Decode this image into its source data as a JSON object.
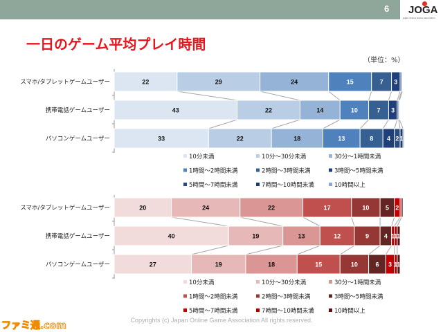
{
  "header": {
    "page_number": "6",
    "logo_text": "JOGA",
    "logo_subtext": "Japan Online Game Association"
  },
  "title": "一日のゲーム平均プレイ時間",
  "unit_label": "（単位：%）",
  "footer": "Copyrights (c) Japan Online Game Association All rights reserved.",
  "watermark": "ファミ通.com",
  "chart_data": [
    {
      "type": "bar",
      "orientation": "horizontal-stacked-100",
      "categories": [
        "スマホ/タブレットゲームユーザー",
        "携帯電話ゲームユーザー",
        "パソコンゲームユーザー"
      ],
      "legend_position": "bottom",
      "xlim": [
        0,
        100
      ],
      "series": [
        {
          "name": "10分未満",
          "color": "#dce6f2",
          "values": [
            22,
            43,
            33
          ],
          "labels": [
            "22",
            "43",
            "33"
          ]
        },
        {
          "name": "10分～30分未満",
          "color": "#b9cde5",
          "values": [
            29,
            22,
            22
          ],
          "labels": [
            "29",
            "22",
            "22"
          ]
        },
        {
          "name": "30分～1時間未満",
          "color": "#95b3d7",
          "values": [
            24,
            14,
            18
          ],
          "labels": [
            "24",
            "14",
            "18"
          ]
        },
        {
          "name": "1時間～2時間未満",
          "color": "#4f81bd",
          "values": [
            15,
            10,
            13
          ],
          "labels": [
            "15",
            "10",
            "13"
          ]
        },
        {
          "name": "2時間～3時間未満",
          "color": "#376092",
          "values": [
            7,
            7,
            8
          ],
          "labels": [
            "7",
            "7",
            "8"
          ]
        },
        {
          "name": "3時間～5時間未満",
          "color": "#1f3f78",
          "values": [
            3,
            3,
            4
          ],
          "labels": [
            "3",
            "3",
            "4"
          ]
        },
        {
          "name": "5時間～7時間未満",
          "color": "#2a4a80",
          "values": [
            0.5,
            0.5,
            2
          ],
          "labels": [
            "",
            "",
            "2"
          ]
        },
        {
          "name": "7時間～10時間未満",
          "color": "#1f3864",
          "values": [
            0.3,
            0.3,
            1
          ],
          "labels": [
            "",
            "",
            "1"
          ]
        },
        {
          "name": "10時間以上",
          "color": "#8ea9c8",
          "values": [
            0.2,
            0.2,
            0.5
          ],
          "labels": [
            "",
            "",
            ""
          ]
        }
      ]
    },
    {
      "type": "bar",
      "orientation": "horizontal-stacked-100",
      "categories": [
        "スマホ/タブレットゲームユーザー",
        "携帯電話ゲームユーザー",
        "パソコンゲームユーザー"
      ],
      "legend_position": "bottom",
      "xlim": [
        0,
        100
      ],
      "series": [
        {
          "name": "10分未満",
          "color": "#f2dcdb",
          "values": [
            20,
            40,
            27
          ],
          "labels": [
            "20",
            "40",
            "27"
          ]
        },
        {
          "name": "10分～30分未満",
          "color": "#e6b9b8",
          "values": [
            24,
            19,
            19
          ],
          "labels": [
            "24",
            "19",
            "19"
          ]
        },
        {
          "name": "30分～1時間未満",
          "color": "#d99694",
          "values": [
            22,
            13,
            18
          ],
          "labels": [
            "22",
            "13",
            "18"
          ]
        },
        {
          "name": "1時間～2時間未満",
          "color": "#c0504d",
          "values": [
            17,
            12,
            15
          ],
          "labels": [
            "17",
            "12",
            "15"
          ]
        },
        {
          "name": "2時間～3時間未満",
          "color": "#953735",
          "values": [
            10,
            9,
            10
          ],
          "labels": [
            "10",
            "9",
            "10"
          ]
        },
        {
          "name": "3時間～5時間未満",
          "color": "#632523",
          "values": [
            5,
            4,
            6
          ],
          "labels": [
            "5",
            "4",
            "6"
          ]
        },
        {
          "name": "5時間～7時間未満",
          "color": "#c00000",
          "values": [
            2,
            1,
            3
          ],
          "labels": [
            "2",
            "1",
            "3"
          ]
        },
        {
          "name": "7時間～10時間未満",
          "color": "#a00000",
          "values": [
            0.5,
            1,
            1
          ],
          "labels": [
            "",
            "1",
            "1"
          ]
        },
        {
          "name": "10時間以上",
          "color": "#5a1010",
          "values": [
            0.5,
            1,
            1
          ],
          "labels": [
            "",
            "1",
            "1"
          ]
        }
      ]
    }
  ]
}
